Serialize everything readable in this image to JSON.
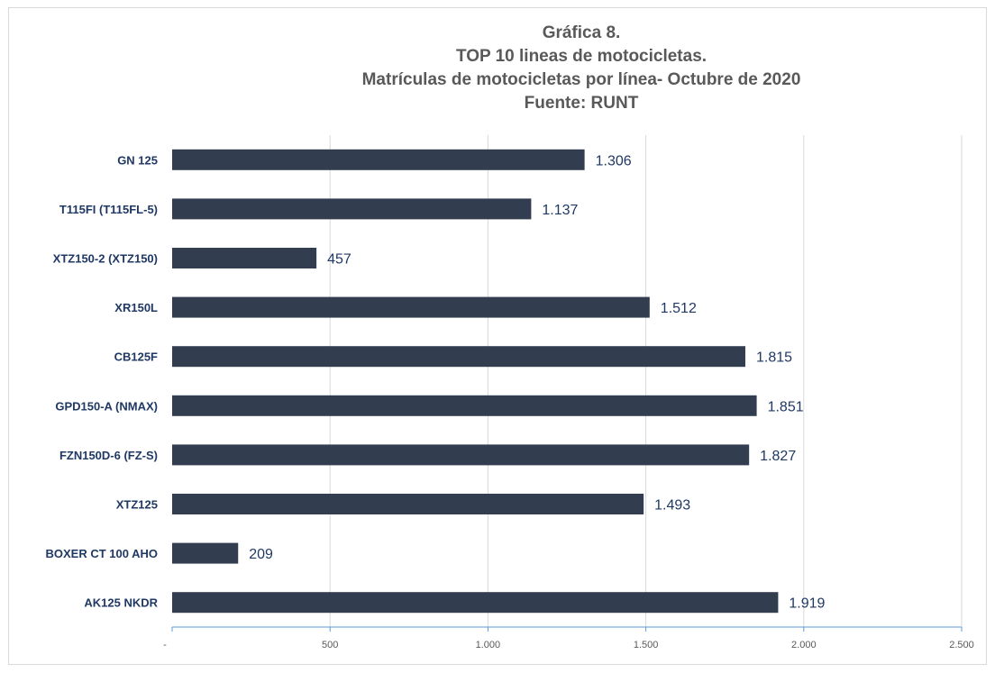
{
  "chart_data": {
    "type": "bar",
    "orientation": "horizontal",
    "title_lines": [
      "Gráfica 8.",
      "TOP 10 lineas de motocicletas.",
      "Matrículas de motocicletas por línea- Octubre de 2020",
      "Fuente: RUNT"
    ],
    "categories": [
      "GN 125",
      "T115FI (T115FL-5)",
      "XTZ150-2 (XTZ150)",
      "XR150L",
      "CB125F",
      "GPD150-A (NMAX)",
      "FZN150D-6 (FZ-S)",
      "XTZ125",
      "BOXER CT 100 AHO",
      "AK125 NKDR"
    ],
    "values": [
      1306,
      1137,
      457,
      1512,
      1815,
      1851,
      1827,
      1493,
      209,
      1919
    ],
    "value_labels": [
      "1.306",
      "1.137",
      "457",
      "1.512",
      "1.815",
      "1.851",
      "1.827",
      "1.493",
      "209",
      "1.919"
    ],
    "xlim": [
      0,
      2500
    ],
    "x_ticks": [
      0,
      500,
      1000,
      1500,
      2000,
      2500
    ],
    "x_tick_labels": [
      "-",
      "500",
      "1.000",
      "1.500",
      "2.000",
      "2.500"
    ],
    "grid": "vertical",
    "bar_color": "#323e4f",
    "label_color": "#1f3864",
    "axis_color": "#5b9bd5"
  }
}
